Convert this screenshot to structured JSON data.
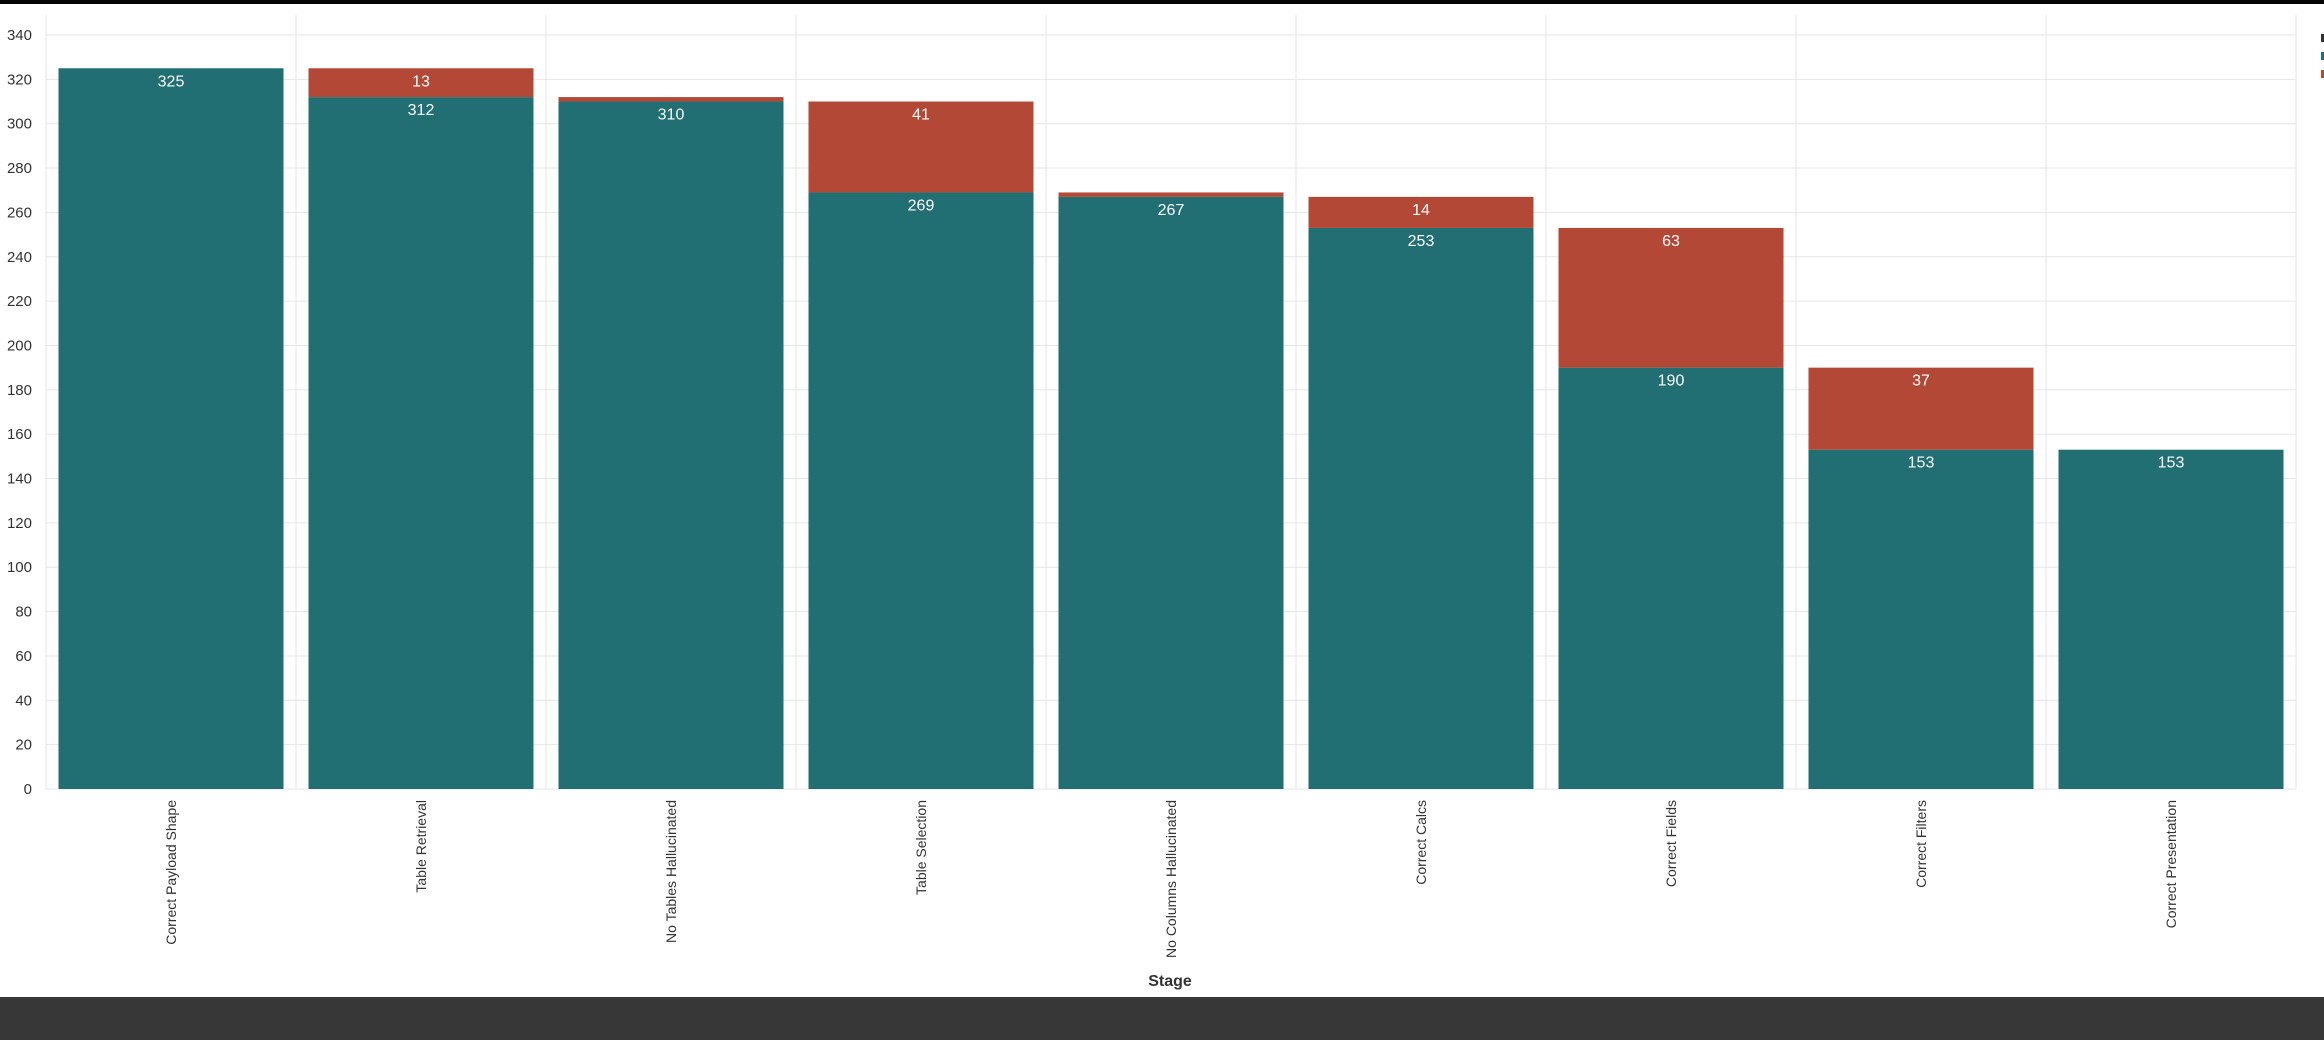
{
  "chart_data": {
    "type": "bar",
    "stacked": true,
    "title": "",
    "xlabel": "Stage",
    "ylabel": "",
    "ylim": [
      0,
      340
    ],
    "yticks": [
      0,
      20,
      40,
      60,
      80,
      100,
      120,
      140,
      160,
      180,
      200,
      220,
      240,
      260,
      280,
      300,
      320,
      340
    ],
    "grid": true,
    "legend": "top-right (cropped)",
    "categories": [
      "Correct Payload Shape",
      "Table Retrieval",
      "No Tables Hallucinated",
      "Table Selection",
      "No Columns Hallucinated",
      "Correct Calcs",
      "Correct Fields",
      "Correct Filters",
      "Correct Presentation"
    ],
    "series": [
      {
        "color": "#216f72",
        "values": [
          325,
          312,
          310,
          269,
          267,
          253,
          190,
          153,
          153
        ],
        "labels": [
          "325",
          "312",
          "310",
          "269",
          "267",
          "253",
          "190",
          "153",
          "153"
        ]
      },
      {
        "color": "#b34836",
        "values": [
          0,
          13,
          2,
          41,
          2,
          14,
          63,
          37,
          0
        ],
        "labels": [
          "",
          "13",
          "",
          "41",
          "",
          "14",
          "63",
          "37",
          ""
        ]
      }
    ]
  }
}
